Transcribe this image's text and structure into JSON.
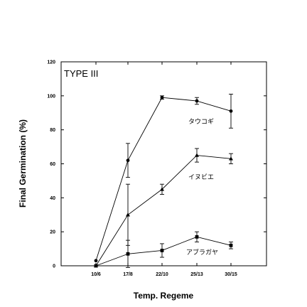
{
  "chart_data": {
    "type": "line",
    "title": "",
    "panel_label": "TYPE III",
    "xlabel": "Temp. Regeme",
    "ylabel": "Final Germination (%)",
    "categories": [
      "10/6",
      "17/8",
      "22/10",
      "25/13",
      "30/15"
    ],
    "ylim": [
      0,
      120
    ],
    "yticks": [
      "0",
      "20",
      "40",
      "60",
      "80",
      "100",
      "120"
    ],
    "grid": false,
    "series": [
      {
        "name": "タウコギ",
        "marker": "circle",
        "values": [
          3,
          62,
          99,
          97,
          91
        ],
        "errors": [
          0,
          10,
          1,
          2,
          10
        ]
      },
      {
        "name": "イヌビエ",
        "marker": "triangle",
        "values": [
          0,
          30,
          45,
          65,
          63
        ],
        "errors": [
          0,
          18,
          3,
          4,
          3
        ]
      },
      {
        "name": "アブラガヤ",
        "marker": "square",
        "values": [
          0,
          7,
          9,
          17,
          12
        ],
        "errors": [
          0,
          8,
          4,
          3,
          2
        ]
      }
    ]
  }
}
